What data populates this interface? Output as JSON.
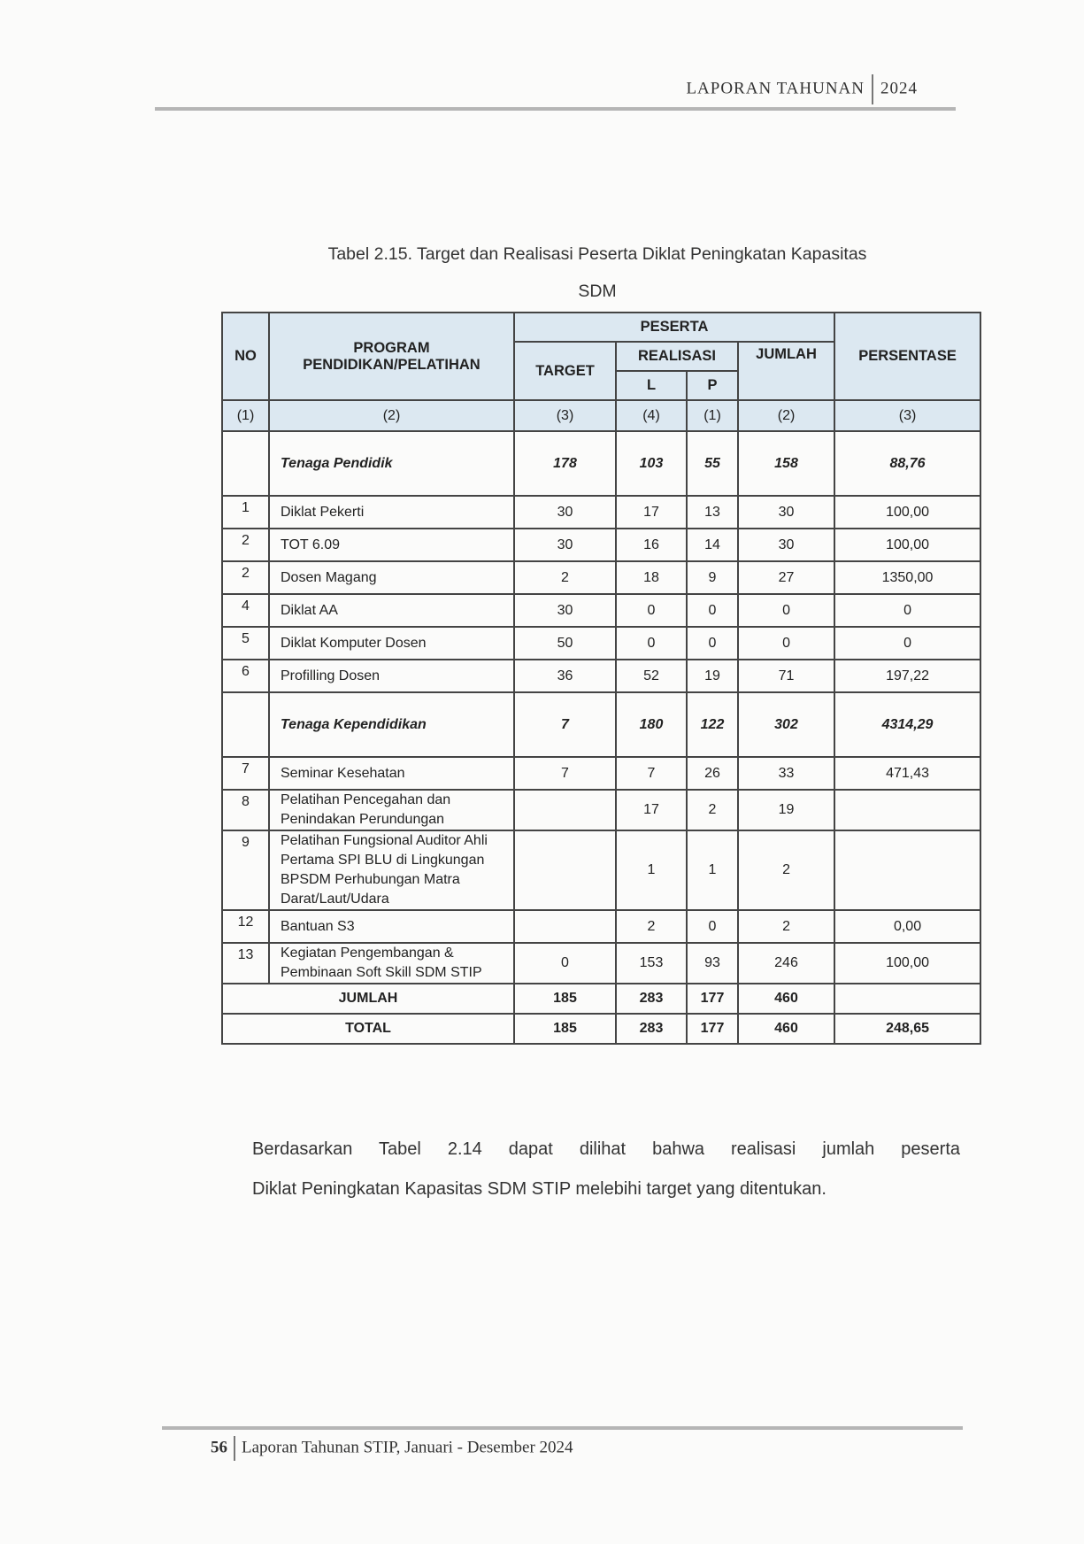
{
  "header": {
    "title": "LAPORAN TAHUNAN",
    "year": "2024"
  },
  "caption": {
    "line1": "Tabel 2.15. Target dan Realisasi Peserta Diklat Peningkatan Kapasitas",
    "line2": "SDM"
  },
  "table": {
    "headers": {
      "no": "NO",
      "program": "PROGRAM PENDIDIKAN/PELATIHAN",
      "peserta": "PESERTA",
      "target": "TARGET",
      "realisasi": "REALISASI",
      "l": "L",
      "p": "P",
      "jumlah": "JUMLAH",
      "persentase": "PERSENTASE"
    },
    "index_row": [
      "(1)",
      "(2)",
      "(3)",
      "(4)",
      "(1)",
      "(2)",
      "(3)"
    ],
    "groups": [
      {
        "label": "Tenaga Pendidik",
        "target": "178",
        "l": "103",
        "p": "55",
        "jumlah": "158",
        "persentase": "88,76",
        "rows": [
          {
            "no": "1",
            "program": "Diklat Pekerti",
            "target": "30",
            "l": "17",
            "p": "13",
            "jumlah": "30",
            "persentase": "100,00"
          },
          {
            "no": "2",
            "program": "TOT 6.09",
            "target": "30",
            "l": "16",
            "p": "14",
            "jumlah": "30",
            "persentase": "100,00"
          },
          {
            "no": "2",
            "program": "Dosen Magang",
            "target": "2",
            "l": "18",
            "p": "9",
            "jumlah": "27",
            "persentase": "1350,00"
          },
          {
            "no": "4",
            "program": "Diklat AA",
            "target": "30",
            "l": "0",
            "p": "0",
            "jumlah": "0",
            "persentase": "0"
          },
          {
            "no": "5",
            "program": "Diklat Komputer Dosen",
            "target": "50",
            "l": "0",
            "p": "0",
            "jumlah": "0",
            "persentase": "0"
          },
          {
            "no": "6",
            "program": "Profilling Dosen",
            "target": "36",
            "l": "52",
            "p": "19",
            "jumlah": "71",
            "persentase": "197,22"
          }
        ]
      },
      {
        "label": "Tenaga Kependidikan",
        "target": "7",
        "l": "180",
        "p": "122",
        "jumlah": "302",
        "persentase": "4314,29",
        "rows": [
          {
            "no": "7",
            "program": "Seminar Kesehatan",
            "target": "7",
            "l": "7",
            "p": "26",
            "jumlah": "33",
            "persentase": "471,43"
          },
          {
            "no": "8",
            "program": "Pelatihan Pencegahan dan Penindakan Perundungan",
            "target": "",
            "l": "17",
            "p": "2",
            "jumlah": "19",
            "persentase": ""
          },
          {
            "no": "9",
            "program": "Pelatihan Fungsional Auditor Ahli Pertama SPI BLU di Lingkungan BPSDM Perhubungan Matra Darat/Laut/Udara",
            "target": "",
            "l": "1",
            "p": "1",
            "jumlah": "2",
            "persentase": ""
          },
          {
            "no": "12",
            "program": "Bantuan S3",
            "target": "",
            "l": "2",
            "p": "0",
            "jumlah": "2",
            "persentase": "0,00"
          },
          {
            "no": "13",
            "program": "Kegiatan Pengembangan & Pembinaan Soft Skill SDM STIP",
            "target": "0",
            "l": "153",
            "p": "93",
            "jumlah": "246",
            "persentase": "100,00"
          }
        ]
      }
    ],
    "summary": [
      {
        "label": "JUMLAH",
        "target": "185",
        "l": "283",
        "p": "177",
        "jumlah": "460",
        "persentase": ""
      },
      {
        "label": "TOTAL",
        "target": "185",
        "l": "283",
        "p": "177",
        "jumlah": "460",
        "persentase": "248,65"
      }
    ]
  },
  "paragraph": {
    "line1": "Berdasarkan Tabel 2.14 dapat dilihat bahwa realisasi jumlah peserta",
    "line2": "Diklat Peningkatan Kapasitas SDM STIP melebihi target yang ditentukan."
  },
  "footer": {
    "page": "56",
    "text": "Laporan Tahunan STIP, Januari - Desember 2024"
  },
  "colors": {
    "header_fill": "#dce8f1",
    "rule": "#b5b5b5"
  }
}
